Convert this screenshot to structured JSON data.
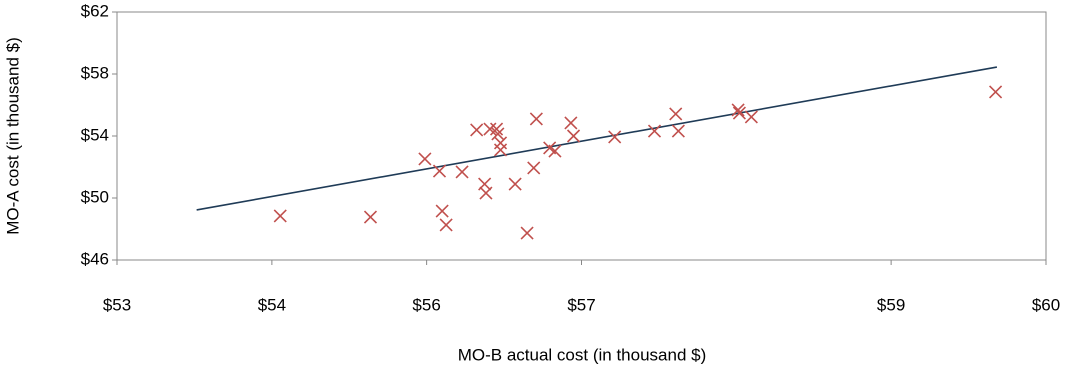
{
  "chart_data": {
    "type": "scatter",
    "x_label": "MO-B actual cost (in thousand $)",
    "y_label": "MO-A cost (in thousand $)",
    "xlim": [
      53,
      60
    ],
    "xticks": [
      {
        "value": 53,
        "label": "$53"
      },
      {
        "value": 54.167,
        "label": "$54"
      },
      {
        "value": 55.333,
        "label": "$56"
      },
      {
        "value": 56.5,
        "label": "$57"
      },
      {
        "value": 58.833,
        "label": "$59"
      },
      {
        "value": 60,
        "label": "$60"
      }
    ],
    "ylim": [
      46,
      62
    ],
    "yticks": [
      {
        "value": 46,
        "label": "$46"
      },
      {
        "value": 50,
        "label": "$50"
      },
      {
        "value": 54,
        "label": "$54"
      },
      {
        "value": 58,
        "label": "$58"
      },
      {
        "value": 62,
        "label": "$62"
      }
    ],
    "series": [
      {
        "color": "#c0504d",
        "x": [
          54.23,
          54.91,
          55.32,
          55.43,
          55.45,
          55.48,
          55.6,
          55.71,
          55.77,
          55.78,
          55.81,
          55.86,
          55.87,
          55.89,
          55.89,
          56.0,
          56.09,
          56.14,
          56.16,
          56.26,
          56.3,
          56.42,
          56.44,
          56.75,
          57.05,
          57.21,
          57.23,
          57.68,
          57.69,
          57.78,
          59.62
        ],
        "values": [
          48.84,
          48.77,
          52.52,
          51.74,
          49.16,
          48.26,
          51.68,
          54.39,
          50.9,
          50.32,
          54.45,
          54.45,
          54.13,
          53.55,
          53.1,
          50.9,
          47.74,
          51.94,
          55.1,
          53.23,
          53.03,
          54.84,
          54.0,
          53.94,
          54.32,
          55.42,
          54.32,
          55.68,
          55.48,
          55.23,
          56.84
        ]
      }
    ],
    "trendline": {
      "color": "#1f3b57",
      "x": [
        53.6,
        59.63
      ],
      "values": [
        49.23,
        58.45
      ]
    }
  }
}
